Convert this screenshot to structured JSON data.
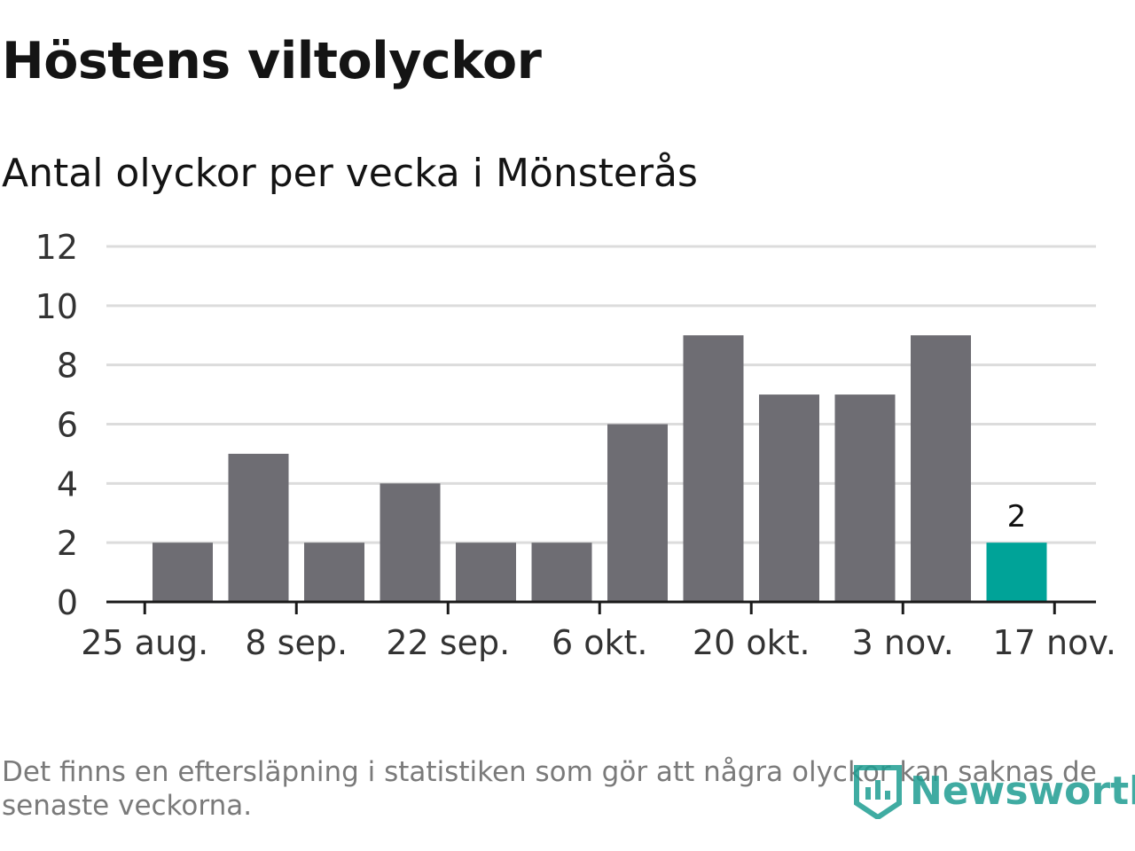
{
  "title": "Höstens viltolyckor",
  "subtitle": "Antal olyckor per vecka i Mönsterås",
  "footnote": "Det finns en eftersläpning i statistiken som gör att några olyckor kan saknas de senaste veckorna.",
  "logo_text": "Newsworthy",
  "colors": {
    "bar": "#6e6d73",
    "highlight": "#00a398",
    "grid": "#dcdcdc",
    "axis": "#1a1a1a",
    "logo": "#1f9d92"
  },
  "chart_data": {
    "type": "bar",
    "title": "Höstens viltolyckor",
    "subtitle": "Antal olyckor per vecka i Mönsterås",
    "xlabel": "",
    "ylabel": "",
    "ylim": [
      0,
      12
    ],
    "y_ticks": [
      0,
      2,
      4,
      6,
      8,
      10,
      12
    ],
    "x_tick_labels": [
      "25 aug.",
      "8 sep.",
      "22 sep.",
      "6 okt.",
      "20 okt.",
      "3 nov.",
      "17 nov."
    ],
    "values": [
      2,
      5,
      2,
      4,
      2,
      2,
      6,
      9,
      7,
      7,
      9,
      2
    ],
    "highlight_index": 11,
    "data_labels": [
      {
        "index": 11,
        "text": "2"
      }
    ],
    "grid": true
  }
}
